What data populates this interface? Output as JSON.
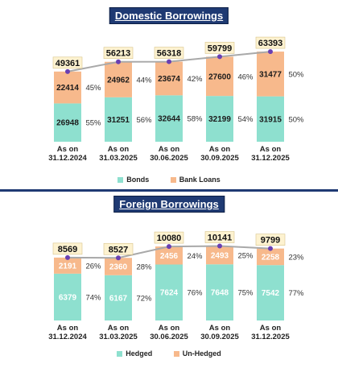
{
  "colors": {
    "primary": "#8ee0cf",
    "secondary": "#f7b98c",
    "line": "#a9a9a9",
    "marker": "#6a3fb2",
    "total_label_bg": "#fdf2d0",
    "title_bg": "#1f3a73"
  },
  "chart_data": [
    {
      "type": "bar",
      "stacked": true,
      "title": "Domestic Borrowings",
      "categories": [
        [
          "As on",
          "31.12.2024"
        ],
        [
          "As on",
          "31.03.2025"
        ],
        [
          "As on",
          "30.06.2025"
        ],
        [
          "As on",
          "30.09.2025"
        ],
        [
          "As on",
          "31.12.2025"
        ]
      ],
      "series": [
        {
          "name": "Bonds",
          "values": [
            26948,
            31251,
            32644,
            32199,
            31915
          ],
          "percent_labels": [
            "55%",
            "56%",
            "58%",
            "54%",
            "50%"
          ]
        },
        {
          "name": "Bank Loans",
          "values": [
            22414,
            24962,
            23674,
            27600,
            31477
          ],
          "percent_labels": [
            "45%",
            "44%",
            "42%",
            "46%",
            "50%"
          ]
        }
      ],
      "totals": [
        49361,
        56213,
        56318,
        59799,
        63393
      ],
      "ylim": [
        0,
        64000
      ],
      "legend_position": "bottom"
    },
    {
      "type": "bar",
      "stacked": true,
      "title": "Foreign Borrowings",
      "categories": [
        [
          "As on",
          "31.12.2024"
        ],
        [
          "As on",
          "31.03.2025"
        ],
        [
          "As on",
          "30.06.2025"
        ],
        [
          "As on",
          "30.09.2025"
        ],
        [
          "As on",
          "31.12.2025"
        ]
      ],
      "series": [
        {
          "name": "Hedged",
          "values": [
            6379,
            6167,
            7624,
            7648,
            7542
          ],
          "percent_labels": [
            "74%",
            "72%",
            "76%",
            "75%",
            "77%"
          ]
        },
        {
          "name": "Un-Hedged",
          "values": [
            2191,
            2360,
            2456,
            2493,
            2258
          ],
          "percent_labels": [
            "26%",
            "28%",
            "24%",
            "25%",
            "23%"
          ]
        }
      ],
      "totals": [
        8569,
        8527,
        10080,
        10141,
        9799
      ],
      "ylim": [
        0,
        10200
      ],
      "legend_position": "bottom"
    }
  ]
}
